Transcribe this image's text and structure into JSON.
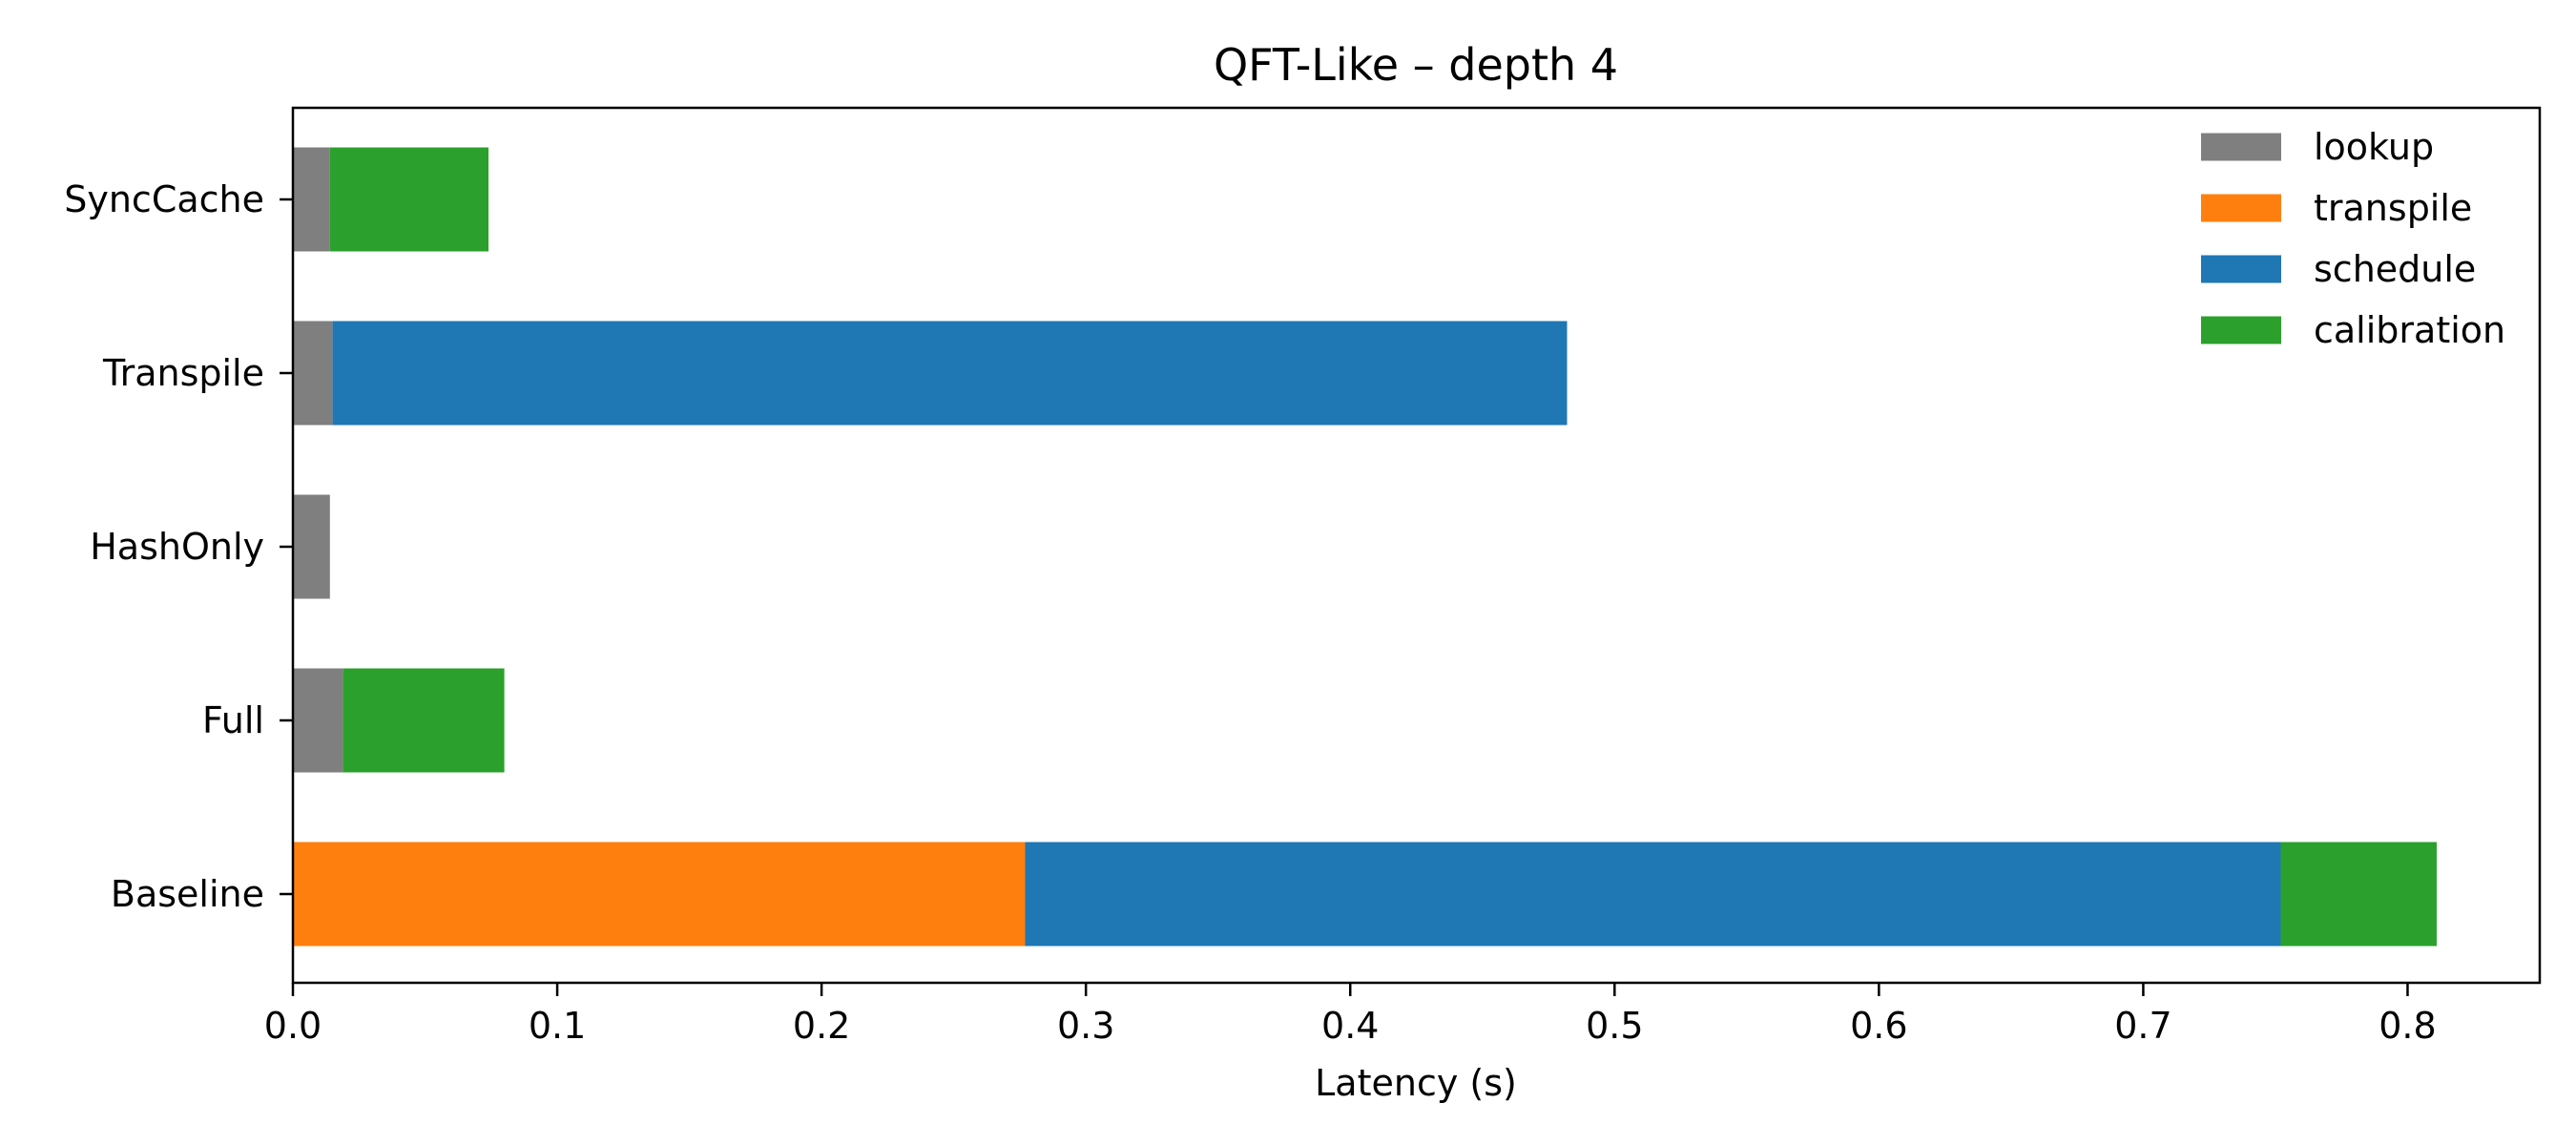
{
  "chart_data": {
    "type": "bar",
    "orientation": "horizontal",
    "stacked": true,
    "title": "QFT-Like – depth 4",
    "xlabel": "Latency (s)",
    "ylabel": "",
    "xlim": [
      0,
      0.85
    ],
    "x_ticks": [
      "0.0",
      "0.1",
      "0.2",
      "0.3",
      "0.4",
      "0.5",
      "0.6",
      "0.7",
      "0.8"
    ],
    "categories": [
      "Baseline",
      "Full",
      "HashOnly",
      "Transpile",
      "SyncCache"
    ],
    "series": [
      {
        "name": "lookup",
        "color": "#7f7f7f",
        "values": [
          0.0,
          0.019,
          0.014,
          0.015,
          0.014
        ]
      },
      {
        "name": "transpile",
        "color": "#ff7f0e",
        "values": [
          0.277,
          0.0,
          0.0,
          0.0,
          0.0
        ]
      },
      {
        "name": "schedule",
        "color": "#1f77b4",
        "values": [
          0.475,
          0.0,
          0.0,
          0.467,
          0.0
        ]
      },
      {
        "name": "calibration",
        "color": "#2ca02c",
        "values": [
          0.059,
          0.061,
          0.0,
          0.0,
          0.06
        ]
      }
    ],
    "legend_position": "top-right",
    "grid": false
  }
}
